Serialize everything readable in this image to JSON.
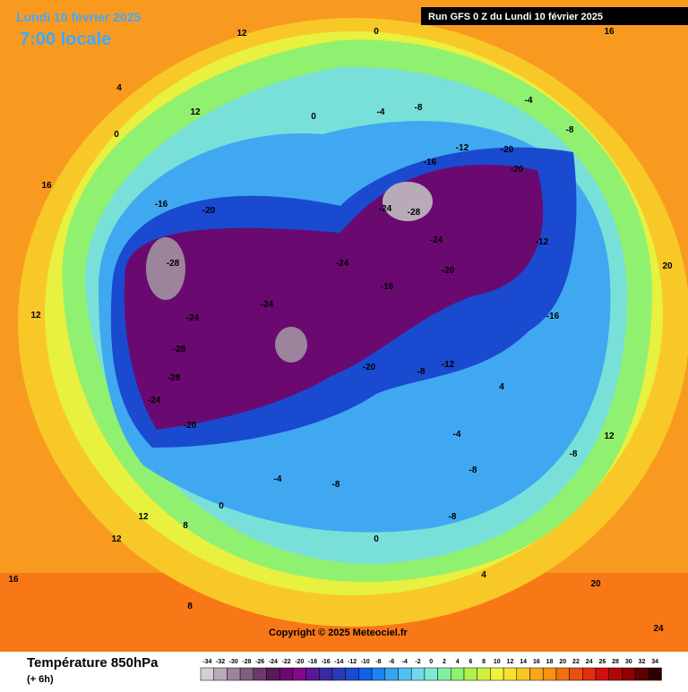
{
  "header": {
    "date": "Lundi 10 février 2025",
    "local_time": "7:00 locale",
    "run": "Run GFS 0 Z du Lundi 10 février 2025"
  },
  "copyright": "Copyright © 2025 Meteociel.fr",
  "legend": {
    "title": "Température 850hPa",
    "subtitle": "(+ 6h)",
    "values": [
      -34,
      -32,
      -30,
      -28,
      -26,
      -24,
      -22,
      -20,
      -18,
      -16,
      -14,
      -12,
      -10,
      -8,
      -6,
      -4,
      -2,
      0,
      2,
      4,
      6,
      8,
      10,
      12,
      14,
      16,
      18,
      20,
      22,
      24,
      26,
      28,
      30,
      32,
      34
    ],
    "colors": [
      "#d4d0d4",
      "#b8aab8",
      "#9c849c",
      "#80607f",
      "#6a3a6a",
      "#5a1a5a",
      "#6a0a70",
      "#800a88",
      "#5a1898",
      "#3a2aa0",
      "#2a3ab8",
      "#1a4ad0",
      "#1060e8",
      "#2080f0",
      "#3aa0f0",
      "#50c0f0",
      "#70d8e8",
      "#80e8d0",
      "#80f0a0",
      "#90f070",
      "#b0f050",
      "#d0f040",
      "#f0f040",
      "#f8e030",
      "#f8c820",
      "#f8a818",
      "#f89010",
      "#f07010",
      "#e85010",
      "#e03010",
      "#d01010",
      "#b00808",
      "#900000",
      "#600000",
      "#300000"
    ]
  },
  "contour_labels": [
    12,
    0,
    16,
    4,
    12,
    0,
    0,
    -4,
    -8,
    -4,
    -8,
    -12,
    -20,
    -16,
    -20,
    16,
    -16,
    -20,
    -24,
    -28,
    -28,
    -24,
    -12,
    -24,
    -16,
    -20,
    -24,
    -24,
    -16,
    -28,
    -28,
    -20,
    -8,
    -12,
    -24,
    -20,
    4,
    -4,
    -8,
    -8,
    -8,
    -4,
    0,
    -8,
    0,
    12,
    12,
    8,
    12,
    20,
    12,
    20,
    24,
    8,
    4,
    16
  ]
}
